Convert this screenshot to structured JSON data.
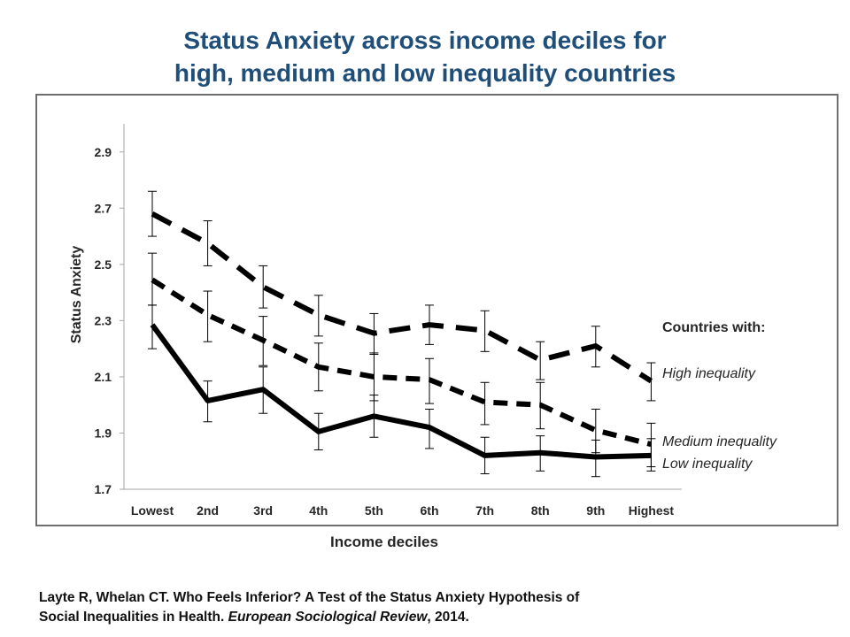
{
  "title_line1": "Status Anxiety across income deciles for",
  "title_line2": "high, medium and low inequality countries",
  "citation": {
    "line1": "Layte R, Whelan CT. Who Feels Inferior?  A Test of the Status Anxiety Hypothesis of",
    "line2_prefix": "Social Inequalities in Health. ",
    "journal": "European Sociological Review",
    "line2_suffix": ", 2014."
  },
  "colors": {
    "title": "#1f4e79",
    "series": "#000000",
    "frame": "#6e6e6e",
    "axis_text": "#262626"
  },
  "chart_data": {
    "type": "line",
    "title": "",
    "xlabel": "Income deciles",
    "ylabel": "Status Anxiety",
    "ylim": [
      1.7,
      3.0
    ],
    "yticks": [
      "1.7",
      "1.9",
      "2.1",
      "2.3",
      "2.5",
      "2.7",
      "2.9"
    ],
    "categories": [
      "Lowest",
      "2nd",
      "3rd",
      "4th",
      "5th",
      "6th",
      "7th",
      "8th",
      "9th",
      "Highest"
    ],
    "grid": false,
    "legend_title": "Countries with:",
    "series": [
      {
        "name": "High inequality",
        "style": "long-dash",
        "values": [
          2.68,
          2.575,
          2.42,
          2.32,
          2.255,
          2.285,
          2.265,
          2.16,
          2.21,
          2.085
        ],
        "error_low": [
          2.6,
          2.495,
          2.345,
          2.245,
          2.18,
          2.215,
          2.19,
          2.09,
          2.135,
          2.015
        ],
        "error_high": [
          2.76,
          2.655,
          2.495,
          2.39,
          2.325,
          2.355,
          2.335,
          2.225,
          2.28,
          2.15
        ]
      },
      {
        "name": "Medium inequality",
        "style": "short-dash",
        "values": [
          2.445,
          2.32,
          2.23,
          2.135,
          2.1,
          2.09,
          2.01,
          2.0,
          1.91,
          1.86
        ],
        "error_low": [
          2.355,
          2.225,
          2.14,
          2.05,
          2.015,
          2.005,
          1.93,
          1.915,
          1.83,
          1.78
        ],
        "error_high": [
          2.54,
          2.405,
          2.315,
          2.22,
          2.185,
          2.165,
          2.08,
          2.08,
          1.985,
          1.935
        ]
      },
      {
        "name": "Low inequality",
        "style": "solid",
        "values": [
          2.285,
          2.015,
          2.055,
          1.905,
          1.96,
          1.92,
          1.82,
          1.83,
          1.815,
          1.82
        ],
        "error_low": [
          2.2,
          1.94,
          1.97,
          1.84,
          1.885,
          1.845,
          1.755,
          1.765,
          1.745,
          1.765
        ],
        "error_high": [
          2.355,
          2.085,
          2.135,
          1.97,
          2.035,
          1.985,
          1.885,
          1.89,
          1.875,
          1.88
        ]
      }
    ]
  }
}
